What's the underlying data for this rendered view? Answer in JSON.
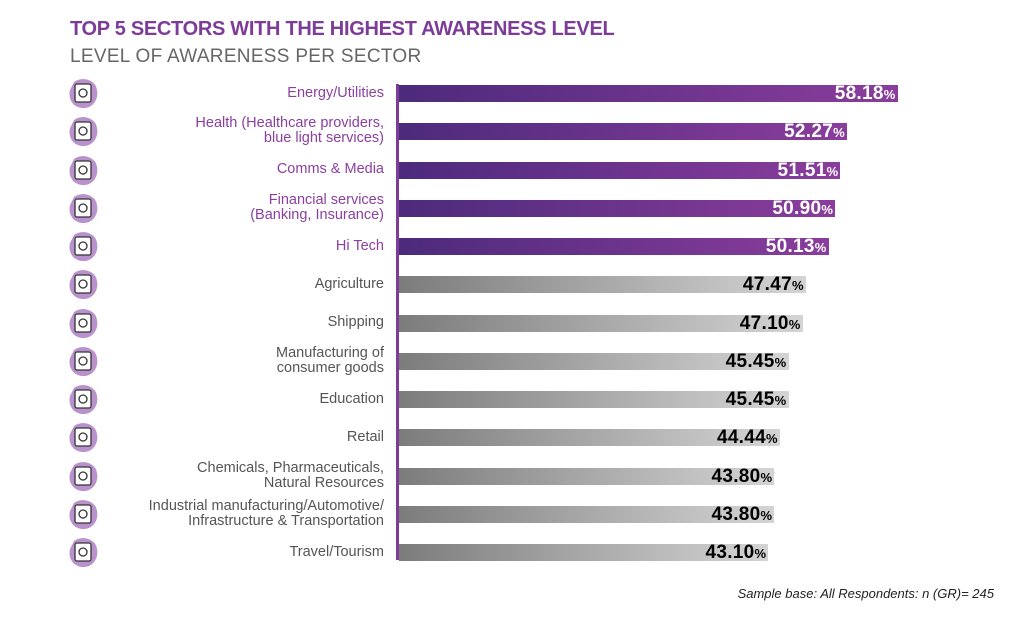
{
  "title": "TOP 5 SECTORS WITH THE HIGHEST AWARENESS LEVEL",
  "subtitle": "LEVEL OF AWARENESS PER SECTOR",
  "footnote": "Sample base: All Respondents: n (GR)= 245",
  "colors": {
    "highlight": "#7d3c98",
    "rest": "#9a9a9a"
  },
  "chart_data": {
    "type": "bar",
    "orientation": "horizontal",
    "title": "TOP 5 SECTORS WITH THE HIGHEST AWARENESS LEVEL",
    "subtitle": "LEVEL OF AWARENESS PER SECTOR",
    "unit": "%",
    "xlim": [
      0,
      60
    ],
    "highlight_top": 5,
    "categories": [
      [
        "Energy/Utilities"
      ],
      [
        "Health (Healthcare providers,",
        "blue light services)"
      ],
      [
        "Comms & Media"
      ],
      [
        "Financial services",
        "(Banking, Insurance)"
      ],
      [
        "Hi Tech"
      ],
      [
        "Agriculture"
      ],
      [
        "Shipping"
      ],
      [
        "Manufacturing of",
        "consumer goods"
      ],
      [
        "Education"
      ],
      [
        "Retail"
      ],
      [
        "Chemicals,  Pharmaceuticals,",
        "Natural Resources"
      ],
      [
        "Industrial manufacturing/Automotive/",
        "Infrastructure & Transportation"
      ],
      [
        "Travel/Tourism"
      ]
    ],
    "icons": [
      "energy-icon",
      "health-icon",
      "media-icon",
      "finance-icon",
      "rocket-icon",
      "agriculture-icon",
      "ship-icon",
      "barcode-icon",
      "atom-icon",
      "retail-icon",
      "chemistry-icon",
      "factory-icon",
      "compass-icon"
    ],
    "values": [
      58.18,
      52.27,
      51.51,
      50.9,
      50.13,
      47.47,
      47.1,
      45.45,
      45.45,
      44.44,
      43.8,
      43.8,
      43.1
    ]
  }
}
